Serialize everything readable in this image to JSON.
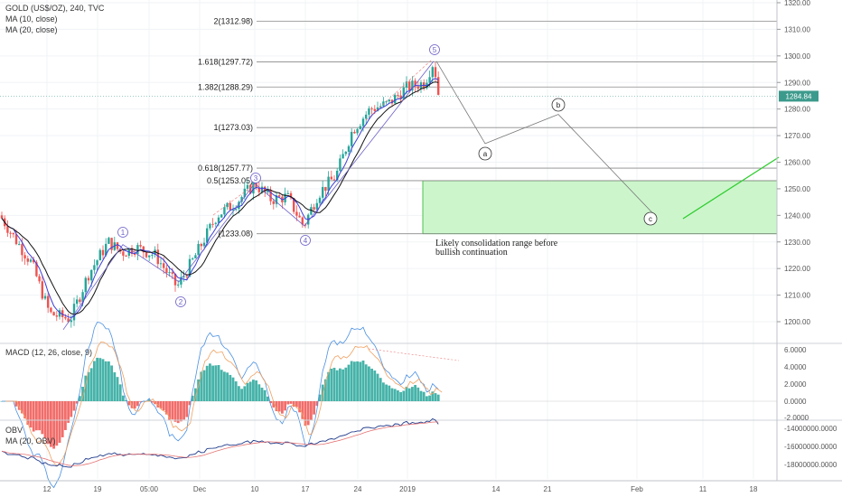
{
  "header": {
    "symbol": "GOLD (US$/OZ), 240, TVC",
    "ma10": "MA (10, close)",
    "ma20": "MA (20, close)"
  },
  "macd_pane": {
    "title": "MACD (12, 26, close, 9)"
  },
  "obv_pane": {
    "title": "OBV",
    "ma": "MA (20, OBV)"
  },
  "price_tag": {
    "value": "1284.84",
    "color": "#3c9a8c"
  },
  "colors": {
    "up": "#26a69a",
    "down": "#ef5350",
    "box_fill": "#ccf5cc",
    "box_stroke": "#2ab32a",
    "wave": "#6b5fc7"
  },
  "chart_data": [
    {
      "type": "line",
      "pane": "price",
      "ylim": [
        1190,
        1320
      ],
      "y_ticks": [
        "1200.00",
        "1210.00",
        "1220.00",
        "1230.00",
        "1240.00",
        "1250.00",
        "1260.00",
        "1270.00",
        "1280.00",
        "1290.00",
        "1300.00",
        "1310.00",
        "1320.00"
      ],
      "x_ticks": [
        "12",
        "19",
        "05:00",
        "Dec",
        "10",
        "17",
        "24",
        "2019",
        "14",
        "21",
        "Feb",
        "11",
        "18"
      ],
      "fib_levels": [
        {
          "label": "2(1312.98)",
          "value": 1312.98
        },
        {
          "label": "1.618(1297.72)",
          "value": 1297.72
        },
        {
          "label": "1.382(1288.29)",
          "value": 1288.29
        },
        {
          "label": "1(1273.03)",
          "value": 1273.03
        },
        {
          "label": "0.618(1257.77)",
          "value": 1257.77
        },
        {
          "label": "0.5(1253.05)",
          "value": 1253.05
        },
        {
          "label": "(1233.08)",
          "value": 1233.08
        }
      ],
      "wave_labels": [
        "1",
        "2",
        "3",
        "4",
        "5"
      ],
      "abc_labels": [
        "a",
        "b",
        "c"
      ],
      "consolidation_range": {
        "low": 1233.08,
        "high": 1253.05,
        "note_lines": [
          "Likely consolidation range before",
          "bullish continuation"
        ]
      },
      "series": [
        {
          "name": "MA (10, close)"
        },
        {
          "name": "MA (20, close)"
        }
      ]
    },
    {
      "type": "bar",
      "pane": "macd",
      "ylim": [
        -2,
        6.5
      ],
      "y_ticks": [
        "6.0000",
        "4.0000",
        "2.0000",
        "0.0000",
        "-2.0000"
      ]
    },
    {
      "type": "line",
      "pane": "obv",
      "y_ticks": [
        "-14000000.0000",
        "-16000000.0000",
        "-18000000.0000"
      ]
    }
  ]
}
